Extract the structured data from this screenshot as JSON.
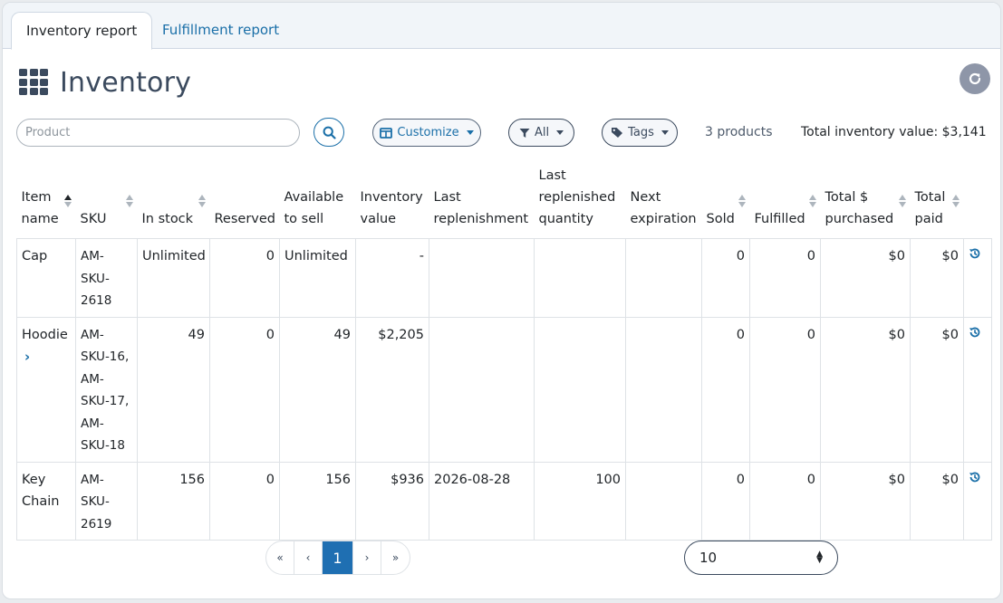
{
  "tabs": [
    {
      "label": "Inventory report",
      "active": true
    },
    {
      "label": "Fulfillment report",
      "active": false
    }
  ],
  "header": {
    "title": "Inventory"
  },
  "toolbar": {
    "search_placeholder": "Product",
    "customize_label": "Customize",
    "filter_label": "All",
    "tags_label": "Tags",
    "product_count": "3 products",
    "total_inventory_value": "Total inventory value: $3,141"
  },
  "table": {
    "columns": [
      {
        "line1": "Item",
        "line2": "name"
      },
      {
        "line1": "",
        "line2": "SKU"
      },
      {
        "line1": "",
        "line2": "In stock"
      },
      {
        "line1": "",
        "line2": "Reserved"
      },
      {
        "line1": "Available",
        "line2": "to sell"
      },
      {
        "line1": "Inventory",
        "line2": "value"
      },
      {
        "line1": "Last",
        "line2": "replenishment"
      },
      {
        "line0": "Last",
        "line1": "replenished",
        "line2": "quantity"
      },
      {
        "line1": "Next",
        "line2": "expiration"
      },
      {
        "line1": "",
        "line2": "Sold"
      },
      {
        "line1": "",
        "line2": "Fulfilled"
      },
      {
        "line1": "Total $",
        "line2": "purchased"
      },
      {
        "line1": "Total",
        "line2": "paid"
      }
    ],
    "rows": [
      {
        "item_name": [
          "Cap"
        ],
        "sku": [
          "AM-",
          "SKU-",
          "2618"
        ],
        "in_stock": "Unlimited",
        "reserved": "0",
        "available": "Unlimited",
        "inventory_value": "-",
        "last_replenishment": "",
        "last_replenished_qty": "",
        "next_expiration": "",
        "sold": "0",
        "fulfilled": "0",
        "total_purchased": "$0",
        "total_paid": "$0"
      },
      {
        "item_name": [
          "Hoodie"
        ],
        "sku": [
          "AM-",
          "SKU-16,",
          "AM-",
          "SKU-17,",
          "AM-",
          "SKU-18"
        ],
        "in_stock": "49",
        "reserved": "0",
        "available": "49",
        "inventory_value": "$2,205",
        "last_replenishment": "",
        "last_replenished_qty": "",
        "next_expiration": "",
        "sold": "0",
        "fulfilled": "0",
        "total_purchased": "$0",
        "total_paid": "$0"
      },
      {
        "item_name": [
          "Key",
          "Chain"
        ],
        "sku": [
          "AM-",
          "SKU-",
          "2619"
        ],
        "in_stock": "156",
        "reserved": "0",
        "available": "156",
        "inventory_value": "$936",
        "last_replenishment": "2026-08-28",
        "last_replenished_qty": "100",
        "next_expiration": "",
        "sold": "0",
        "fulfilled": "0",
        "total_purchased": "$0",
        "total_paid": "$0"
      }
    ]
  },
  "pagination": {
    "first": "«",
    "prev": "‹",
    "current": "1",
    "next": "›",
    "last": "»"
  },
  "per_page": {
    "value": "10"
  },
  "colors": {
    "accent": "#1a6fa8",
    "heading": "#3b4a5e",
    "active_page": "#1f6fb2"
  },
  "icons": {
    "title": "grid-icon",
    "refresh": "refresh-icon",
    "search": "search-icon",
    "customize": "columns-icon",
    "filter": "filter-icon",
    "tags": "tag-icon",
    "expand": "chevron-right-icon",
    "history": "history-icon"
  }
}
